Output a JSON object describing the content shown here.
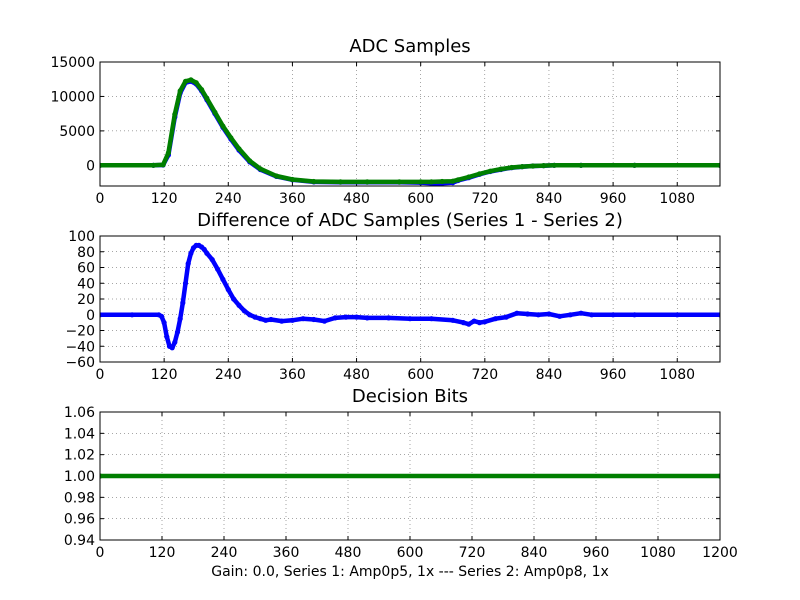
{
  "chart_data": [
    {
      "type": "line",
      "title": "ADC Samples",
      "xlabel": "",
      "ylabel": "",
      "xlim": [
        0,
        1160
      ],
      "ylim": [
        -3000,
        15000
      ],
      "xticks": [
        "0",
        "120",
        "240",
        "360",
        "480",
        "600",
        "720",
        "840",
        "960",
        "1080"
      ],
      "yticks": [
        "15000",
        "10000",
        "5000",
        "0"
      ],
      "ytick_values": [
        15000,
        10000,
        5000,
        0
      ],
      "grid": true,
      "series": [
        {
          "color": "#0000ff",
          "x": [
            0,
            100,
            118,
            128,
            140,
            150,
            160,
            170,
            180,
            190,
            200,
            215,
            230,
            245,
            260,
            280,
            300,
            330,
            360,
            400,
            450,
            500,
            560,
            600,
            620,
            640,
            660,
            670,
            690,
            710,
            730,
            750,
            770,
            790,
            810,
            830,
            850,
            900,
            1000,
            1160
          ],
          "y": [
            0,
            0,
            50,
            1500,
            7000,
            10500,
            12000,
            12200,
            11800,
            10800,
            9500,
            7500,
            5500,
            3800,
            2200,
            500,
            -600,
            -1600,
            -2100,
            -2400,
            -2450,
            -2450,
            -2450,
            -2500,
            -2600,
            -2600,
            -2500,
            -2200,
            -1800,
            -1300,
            -900,
            -600,
            -350,
            -200,
            -100,
            -50,
            0,
            0,
            0,
            0
          ]
        },
        {
          "color": "#007f00",
          "x": [
            0,
            100,
            118,
            128,
            140,
            150,
            160,
            170,
            180,
            190,
            200,
            215,
            230,
            245,
            260,
            280,
            300,
            330,
            360,
            400,
            450,
            500,
            560,
            600,
            620,
            640,
            660,
            670,
            690,
            710,
            730,
            750,
            770,
            790,
            810,
            830,
            850,
            900,
            1000,
            1160
          ],
          "y": [
            0,
            0,
            80,
            1800,
            7400,
            10800,
            12200,
            12400,
            12000,
            11000,
            9700,
            7700,
            5700,
            4000,
            2400,
            650,
            -500,
            -1550,
            -2050,
            -2350,
            -2400,
            -2400,
            -2400,
            -2400,
            -2400,
            -2350,
            -2300,
            -2100,
            -1700,
            -1250,
            -850,
            -550,
            -320,
            -180,
            -90,
            -40,
            0,
            0,
            0,
            0
          ]
        }
      ]
    },
    {
      "type": "line",
      "title": "Difference of ADC Samples (Series 1 - Series 2)",
      "xlabel": "",
      "ylabel": "",
      "xlim": [
        0,
        1160
      ],
      "ylim": [
        -60,
        100
      ],
      "xticks": [
        "0",
        "120",
        "240",
        "360",
        "480",
        "600",
        "720",
        "840",
        "960",
        "1080"
      ],
      "yticks": [
        "100",
        "80",
        "60",
        "40",
        "20",
        "0",
        "−20",
        "−40",
        "−60"
      ],
      "ytick_values": [
        100,
        80,
        60,
        40,
        20,
        0,
        -20,
        -40,
        -60
      ],
      "grid": true,
      "series": [
        {
          "color": "#0000ff",
          "x": [
            0,
            60,
            110,
            115,
            120,
            125,
            130,
            135,
            140,
            145,
            150,
            155,
            160,
            165,
            170,
            175,
            180,
            185,
            190,
            195,
            200,
            210,
            220,
            230,
            240,
            250,
            260,
            270,
            280,
            290,
            300,
            310,
            320,
            340,
            360,
            380,
            400,
            420,
            440,
            460,
            480,
            500,
            540,
            580,
            620,
            660,
            680,
            690,
            700,
            710,
            720,
            740,
            760,
            780,
            800,
            820,
            840,
            860,
            880,
            900,
            920,
            960,
            1000,
            1080,
            1160
          ],
          "y": [
            0,
            0,
            0,
            -2,
            -10,
            -28,
            -40,
            -42,
            -35,
            -22,
            -5,
            15,
            40,
            65,
            78,
            85,
            88,
            88,
            86,
            83,
            78,
            70,
            58,
            45,
            32,
            20,
            12,
            5,
            0,
            -3,
            -5,
            -7,
            -6,
            -8,
            -7,
            -5,
            -6,
            -8,
            -4,
            -3,
            -3,
            -4,
            -4,
            -5,
            -5,
            -7,
            -10,
            -12,
            -8,
            -10,
            -9,
            -5,
            -3,
            2,
            1,
            0,
            1,
            -2,
            0,
            2,
            0,
            0,
            0,
            0,
            0
          ]
        }
      ]
    },
    {
      "type": "line",
      "title": "Decision Bits",
      "xlabel": "Gain: 0.0, Series 1: Amp0p5, 1x --- Series 2: Amp0p8, 1x",
      "ylabel": "",
      "xlim": [
        0,
        1200
      ],
      "ylim": [
        0.94,
        1.06
      ],
      "xticks": [
        "0",
        "120",
        "240",
        "360",
        "480",
        "600",
        "720",
        "840",
        "960",
        "1080",
        "1200"
      ],
      "yticks": [
        "1.06",
        "1.04",
        "1.02",
        "1.00",
        "0.98",
        "0.96",
        "0.94"
      ],
      "ytick_values": [
        1.06,
        1.04,
        1.02,
        1.0,
        0.98,
        0.96,
        0.94
      ],
      "grid": true,
      "series": [
        {
          "color": "#007f00",
          "x": [
            0,
            1200
          ],
          "y": [
            1.0,
            1.0
          ]
        }
      ]
    }
  ]
}
